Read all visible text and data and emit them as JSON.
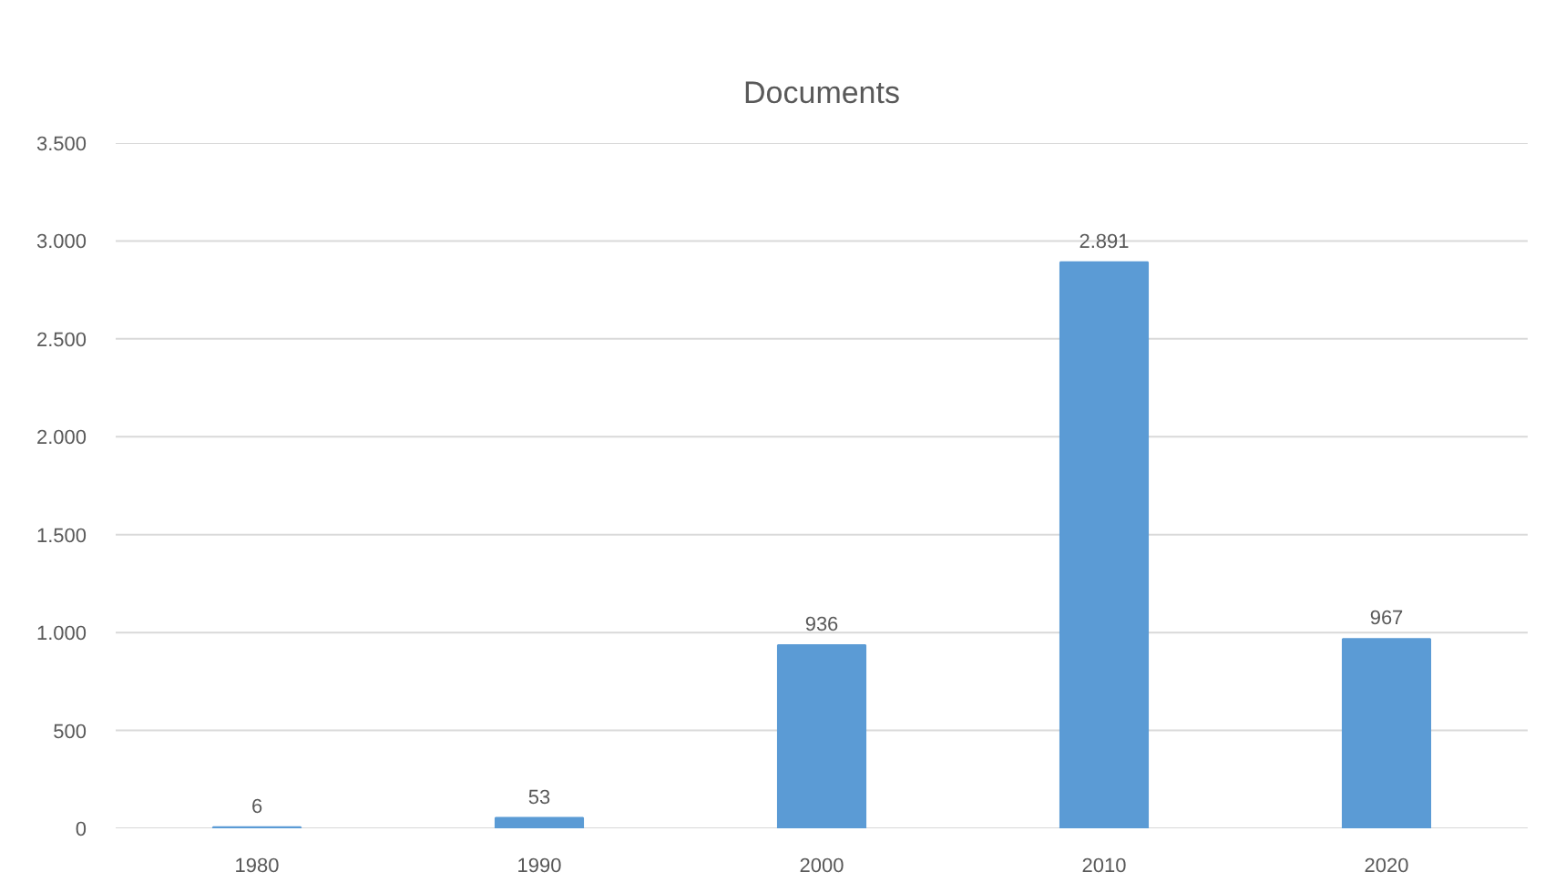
{
  "chart_data": {
    "type": "bar",
    "title": "Documents",
    "categories": [
      "1980",
      "1990",
      "2000",
      "2010",
      "2020"
    ],
    "values": [
      6,
      53,
      936,
      2891,
      967
    ],
    "value_labels": [
      "6",
      "53",
      "936",
      "2.891",
      "967"
    ],
    "color": "#5b9bd5",
    "ylim": [
      0,
      3500
    ],
    "yticks": [
      0,
      500,
      {
        "value": 1000,
        "label": "1.000"
      },
      {
        "value": 1500,
        "label": "1.500"
      },
      {
        "value": 2000,
        "label": "2.000"
      },
      {
        "value": 2500,
        "label": "2.500"
      },
      {
        "value": 3000,
        "label": "3.000"
      },
      {
        "value": 3500,
        "label": "3.500"
      }
    ],
    "grid": "y"
  }
}
